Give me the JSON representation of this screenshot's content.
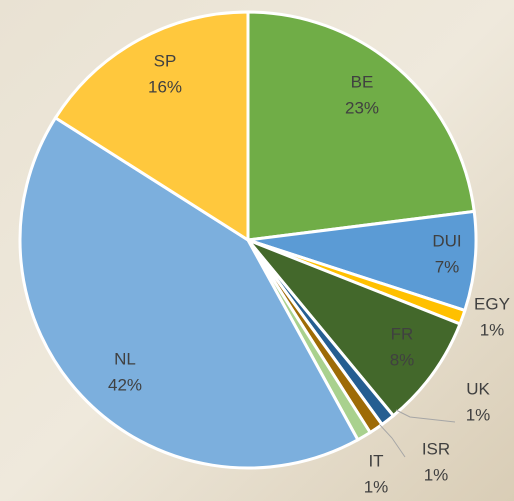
{
  "chart_data": {
    "type": "pie",
    "categories": [
      "BE",
      "DUI",
      "EGY",
      "FR",
      "UK",
      "ISR",
      "IT",
      "NL",
      "SP"
    ],
    "values": [
      23,
      7,
      1,
      8,
      1,
      1,
      1,
      42,
      16
    ],
    "value_labels": [
      "23%",
      "7%",
      "1%",
      "8%",
      "1%",
      "1%",
      "1%",
      "42%",
      "16%"
    ],
    "colors": [
      "#70ad47",
      "#5b9bd5",
      "#ffc000",
      "#43682b",
      "#255e91",
      "#9e6b06",
      "#a9d18e",
      "#7cafdd",
      "#ffc83d"
    ]
  }
}
